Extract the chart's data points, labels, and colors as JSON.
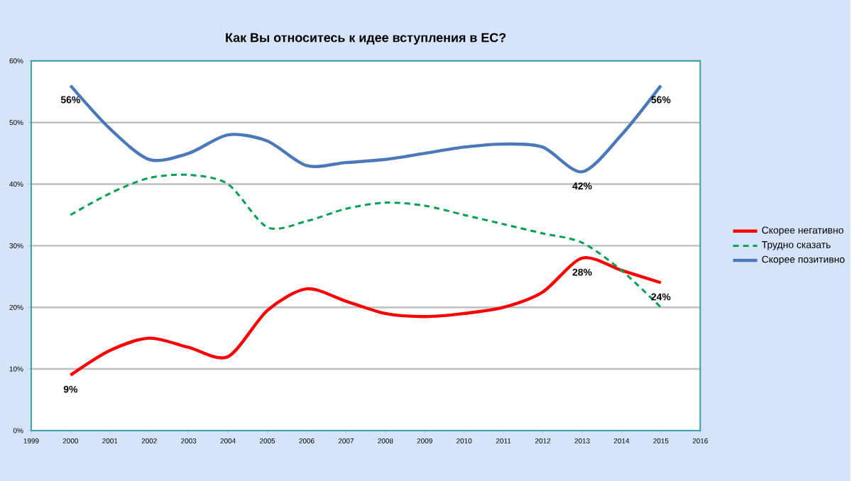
{
  "chart_data": {
    "type": "line",
    "title": "Как Вы относитесь  к идее вступления  в ЕС?",
    "x": [
      2000,
      2001,
      2002,
      2003,
      2004,
      2005,
      2006,
      2007,
      2008,
      2009,
      2010,
      2011,
      2012,
      2013,
      2014,
      2015
    ],
    "series": [
      {
        "name": "Скорее негативно",
        "color": "#ff0000",
        "line_style": "solid",
        "values": [
          9,
          13,
          15,
          13.5,
          12,
          19.5,
          23,
          21,
          19,
          18.5,
          19,
          20,
          22.5,
          28,
          26,
          24
        ],
        "value_labels": [
          "9%",
          null,
          null,
          null,
          null,
          null,
          null,
          null,
          null,
          null,
          null,
          null,
          null,
          "28%",
          null,
          "24%"
        ]
      },
      {
        "name": "Трудно  сказать",
        "color": "#00a050",
        "line_style": "dashed",
        "values": [
          35,
          38.5,
          41,
          41.5,
          40,
          33,
          34,
          36,
          37,
          36.5,
          35,
          33.5,
          32,
          30.5,
          26,
          20
        ]
      },
      {
        "name": "Скорее позитивно",
        "color": "#4a78b8",
        "line_style": "solid",
        "values": [
          56,
          49,
          44,
          45,
          48,
          47,
          43,
          43.5,
          44,
          45,
          46,
          46.5,
          46,
          42,
          48,
          56
        ],
        "value_labels": [
          "56%",
          null,
          null,
          null,
          null,
          null,
          null,
          null,
          null,
          null,
          null,
          null,
          null,
          "42%",
          null,
          "56%"
        ]
      }
    ],
    "xlim": [
      1999,
      2016
    ],
    "xticks": [
      1999,
      2000,
      2001,
      2002,
      2003,
      2004,
      2005,
      2006,
      2007,
      2008,
      2009,
      2010,
      2011,
      2012,
      2013,
      2014,
      2015,
      2016
    ],
    "ylim": [
      0,
      60
    ],
    "yticks": [
      {
        "value": 0,
        "label": "0%"
      },
      {
        "value": 10,
        "label": "10%"
      },
      {
        "value": 20,
        "label": "20%"
      },
      {
        "value": 30,
        "label": "30%"
      },
      {
        "value": 40,
        "label": "40%"
      },
      {
        "value": 50,
        "label": "50%"
      },
      {
        "value": 60,
        "label": "60%"
      }
    ],
    "grid": "y",
    "legend": "right",
    "marker": "none"
  }
}
